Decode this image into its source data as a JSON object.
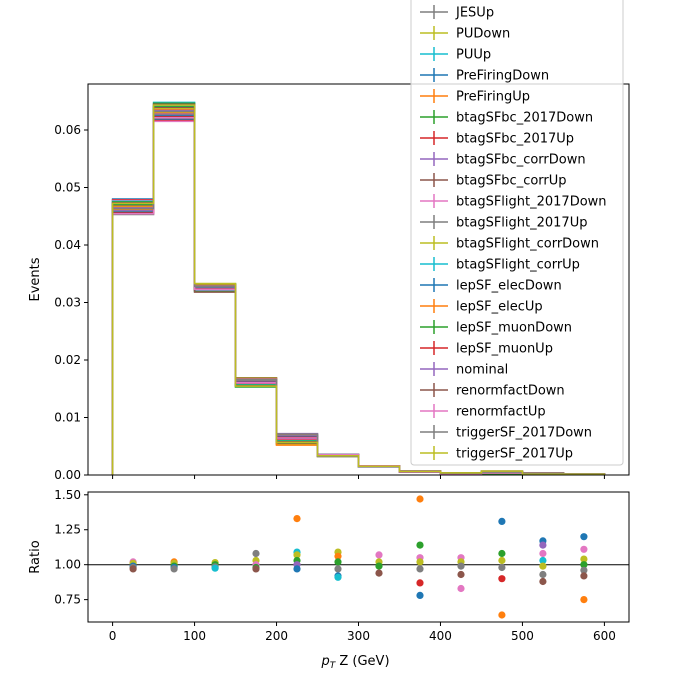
{
  "chart_data": [
    {
      "type": "line",
      "title": "",
      "xlabel": "",
      "ylabel": "Events",
      "xlim": [
        -30,
        630
      ],
      "ylim": [
        0,
        0.068
      ],
      "xticks": [
        0,
        100,
        200,
        300,
        400,
        500,
        600
      ],
      "xtick_labels_shown": false,
      "yticks": [
        0.0,
        0.01,
        0.02,
        0.03,
        0.04,
        0.05,
        0.06
      ],
      "ytick_labels": [
        "0.00",
        "0.01",
        "0.02",
        "0.03",
        "0.04",
        "0.05",
        "0.06"
      ],
      "bin_edges": [
        0,
        50,
        100,
        150,
        200,
        250,
        300,
        350,
        400,
        450,
        500,
        550,
        600
      ],
      "envelope_max": [
        0.048,
        0.0648,
        0.0333,
        0.0169,
        0.0072,
        0.0036,
        0.0016,
        0.0007,
        0.0004,
        0.0007,
        0.0004,
        0.0002
      ],
      "envelope_min": [
        0.0453,
        0.0615,
        0.0318,
        0.0153,
        0.0052,
        0.0032,
        0.0014,
        0.0005,
        0.0002,
        0.0002,
        0.0001,
        0.0001
      ],
      "nominal": [
        0.0466,
        0.0632,
        0.0326,
        0.0156,
        0.0054,
        0.0034,
        0.0015,
        0.0005,
        0.0003,
        0.0005,
        0.0002,
        0.0001
      ],
      "legend_position": "upper right",
      "legend": [
        {
          "name": "JESUp",
          "color": "#7f7f7f"
        },
        {
          "name": "PUDown",
          "color": "#bcbd22"
        },
        {
          "name": "PUUp",
          "color": "#17becf"
        },
        {
          "name": "PreFiringDown",
          "color": "#1f77b4"
        },
        {
          "name": "PreFiringUp",
          "color": "#ff7f0e"
        },
        {
          "name": "btagSFbc_2017Down",
          "color": "#2ca02c"
        },
        {
          "name": "btagSFbc_2017Up",
          "color": "#d62728"
        },
        {
          "name": "btagSFbc_corrDown",
          "color": "#9467bd"
        },
        {
          "name": "btagSFbc_corrUp",
          "color": "#8c564b"
        },
        {
          "name": "btagSFlight_2017Down",
          "color": "#e377c2"
        },
        {
          "name": "btagSFlight_2017Up",
          "color": "#7f7f7f"
        },
        {
          "name": "btagSFlight_corrDown",
          "color": "#bcbd22"
        },
        {
          "name": "btagSFlight_corrUp",
          "color": "#17becf"
        },
        {
          "name": "lepSF_elecDown",
          "color": "#1f77b4"
        },
        {
          "name": "lepSF_elecUp",
          "color": "#ff7f0e"
        },
        {
          "name": "lepSF_muonDown",
          "color": "#2ca02c"
        },
        {
          "name": "lepSF_muonUp",
          "color": "#d62728"
        },
        {
          "name": "nominal",
          "color": "#9467bd"
        },
        {
          "name": "renormfactDown",
          "color": "#8c564b"
        },
        {
          "name": "renormfactUp",
          "color": "#e377c2"
        },
        {
          "name": "triggerSF_2017Down",
          "color": "#7f7f7f"
        },
        {
          "name": "triggerSF_2017Up",
          "color": "#bcbd22"
        }
      ]
    },
    {
      "type": "scatter",
      "title": "",
      "xlabel": "p_T Z (GeV)",
      "xlabel_main": "p",
      "xlabel_sub": "T",
      "xlabel_rest": " Z (GeV)",
      "ylabel": "Ratio",
      "xlim": [
        -30,
        630
      ],
      "ylim": [
        0.59,
        1.52
      ],
      "xticks": [
        0,
        100,
        200,
        300,
        400,
        500,
        600
      ],
      "xtick_labels": [
        "0",
        "100",
        "200",
        "300",
        "400",
        "500",
        "600"
      ],
      "yticks": [
        0.75,
        1.0,
        1.25,
        1.5
      ],
      "ytick_labels": [
        "0.75",
        "1.00",
        "1.25",
        "1.50"
      ],
      "reference_line": 1.0,
      "points": [
        {
          "x": 25,
          "y": 1.02,
          "color": "#e377c2"
        },
        {
          "x": 25,
          "y": 1.01,
          "color": "#bcbd22"
        },
        {
          "x": 25,
          "y": 0.99,
          "color": "#1f77b4"
        },
        {
          "x": 25,
          "y": 0.98,
          "color": "#7f7f7f"
        },
        {
          "x": 25,
          "y": 0.97,
          "color": "#8c564b"
        },
        {
          "x": 75,
          "y": 1.02,
          "color": "#ff7f0e"
        },
        {
          "x": 75,
          "y": 1.01,
          "color": "#bcbd22"
        },
        {
          "x": 75,
          "y": 0.99,
          "color": "#2ca02c"
        },
        {
          "x": 75,
          "y": 0.98,
          "color": "#1f77b4"
        },
        {
          "x": 75,
          "y": 0.97,
          "color": "#7f7f7f"
        },
        {
          "x": 125,
          "y": 1.015,
          "color": "#bcbd22"
        },
        {
          "x": 125,
          "y": 1.0,
          "color": "#2ca02c"
        },
        {
          "x": 125,
          "y": 0.985,
          "color": "#7f7f7f"
        },
        {
          "x": 125,
          "y": 0.975,
          "color": "#17becf"
        },
        {
          "x": 175,
          "y": 1.08,
          "color": "#7f7f7f"
        },
        {
          "x": 175,
          "y": 1.03,
          "color": "#bcbd22"
        },
        {
          "x": 175,
          "y": 1.0,
          "color": "#e377c2"
        },
        {
          "x": 175,
          "y": 0.98,
          "color": "#2ca02c"
        },
        {
          "x": 175,
          "y": 0.97,
          "color": "#8c564b"
        },
        {
          "x": 225,
          "y": 1.33,
          "color": "#ff7f0e"
        },
        {
          "x": 225,
          "y": 1.09,
          "color": "#17becf"
        },
        {
          "x": 225,
          "y": 1.07,
          "color": "#bcbd22"
        },
        {
          "x": 225,
          "y": 1.03,
          "color": "#2ca02c"
        },
        {
          "x": 225,
          "y": 1.0,
          "color": "#9467bd"
        },
        {
          "x": 225,
          "y": 0.97,
          "color": "#1f77b4"
        },
        {
          "x": 275,
          "y": 1.09,
          "color": "#bcbd22"
        },
        {
          "x": 275,
          "y": 1.06,
          "color": "#ff7f0e"
        },
        {
          "x": 275,
          "y": 1.02,
          "color": "#2ca02c"
        },
        {
          "x": 275,
          "y": 0.97,
          "color": "#7f7f7f"
        },
        {
          "x": 275,
          "y": 0.92,
          "color": "#1f77b4"
        },
        {
          "x": 275,
          "y": 0.91,
          "color": "#17becf"
        },
        {
          "x": 325,
          "y": 1.07,
          "color": "#e377c2"
        },
        {
          "x": 325,
          "y": 1.02,
          "color": "#bcbd22"
        },
        {
          "x": 325,
          "y": 0.99,
          "color": "#2ca02c"
        },
        {
          "x": 325,
          "y": 0.94,
          "color": "#8c564b"
        },
        {
          "x": 375,
          "y": 1.47,
          "color": "#ff7f0e"
        },
        {
          "x": 375,
          "y": 1.14,
          "color": "#2ca02c"
        },
        {
          "x": 375,
          "y": 1.05,
          "color": "#e377c2"
        },
        {
          "x": 375,
          "y": 1.02,
          "color": "#bcbd22"
        },
        {
          "x": 375,
          "y": 0.97,
          "color": "#7f7f7f"
        },
        {
          "x": 375,
          "y": 0.87,
          "color": "#d62728"
        },
        {
          "x": 375,
          "y": 0.78,
          "color": "#1f77b4"
        },
        {
          "x": 425,
          "y": 1.05,
          "color": "#e377c2"
        },
        {
          "x": 425,
          "y": 1.02,
          "color": "#bcbd22"
        },
        {
          "x": 425,
          "y": 0.99,
          "color": "#7f7f7f"
        },
        {
          "x": 425,
          "y": 0.93,
          "color": "#8c564b"
        },
        {
          "x": 425,
          "y": 0.83,
          "color": "#e377c2"
        },
        {
          "x": 475,
          "y": 1.31,
          "color": "#1f77b4"
        },
        {
          "x": 475,
          "y": 1.08,
          "color": "#2ca02c"
        },
        {
          "x": 475,
          "y": 1.03,
          "color": "#bcbd22"
        },
        {
          "x": 475,
          "y": 0.98,
          "color": "#7f7f7f"
        },
        {
          "x": 475,
          "y": 0.9,
          "color": "#d62728"
        },
        {
          "x": 475,
          "y": 0.64,
          "color": "#ff7f0e"
        },
        {
          "x": 525,
          "y": 1.17,
          "color": "#1f77b4"
        },
        {
          "x": 525,
          "y": 1.14,
          "color": "#9467bd"
        },
        {
          "x": 525,
          "y": 1.08,
          "color": "#e377c2"
        },
        {
          "x": 525,
          "y": 1.03,
          "color": "#17becf"
        },
        {
          "x": 525,
          "y": 0.99,
          "color": "#bcbd22"
        },
        {
          "x": 525,
          "y": 0.93,
          "color": "#7f7f7f"
        },
        {
          "x": 525,
          "y": 0.88,
          "color": "#8c564b"
        },
        {
          "x": 575,
          "y": 1.2,
          "color": "#1f77b4"
        },
        {
          "x": 575,
          "y": 1.11,
          "color": "#e377c2"
        },
        {
          "x": 575,
          "y": 1.04,
          "color": "#bcbd22"
        },
        {
          "x": 575,
          "y": 1.0,
          "color": "#2ca02c"
        },
        {
          "x": 575,
          "y": 0.96,
          "color": "#7f7f7f"
        },
        {
          "x": 575,
          "y": 0.92,
          "color": "#8c564b"
        },
        {
          "x": 575,
          "y": 0.75,
          "color": "#ff7f0e"
        }
      ]
    }
  ]
}
